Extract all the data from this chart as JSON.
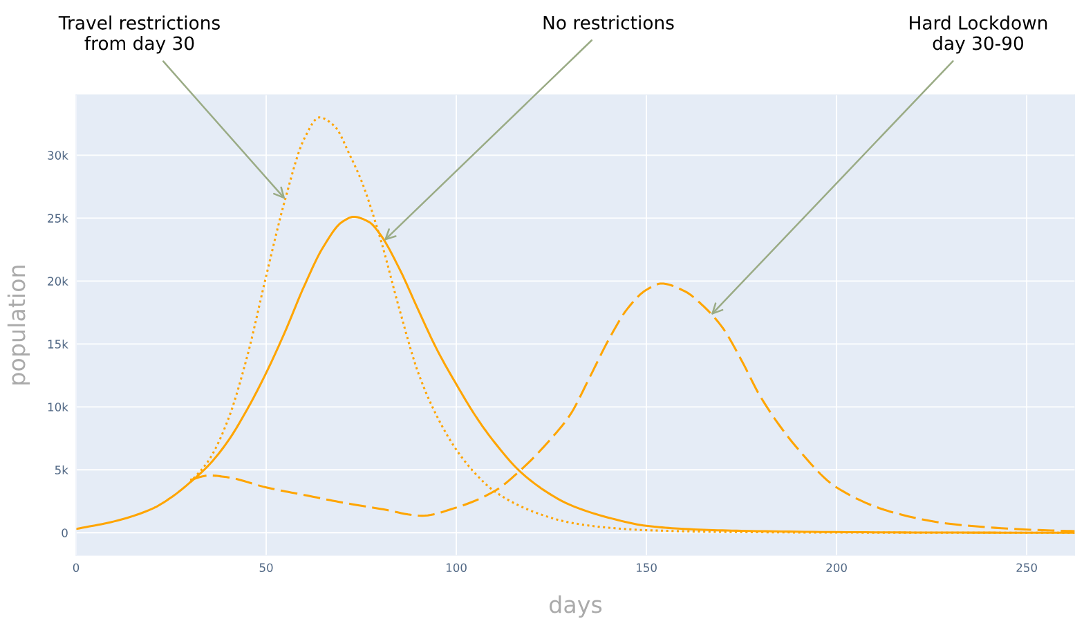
{
  "chart_data": {
    "type": "line",
    "xlabel": "days",
    "ylabel": "population",
    "xlim": [
      0,
      262.7
    ],
    "xticks": [
      0,
      50,
      100,
      150,
      200,
      250
    ],
    "ylim": [
      -1800,
      34800
    ],
    "yticks": [
      0,
      {
        "value": 5000,
        "label": "5k"
      },
      {
        "value": 10000,
        "label": "10k"
      },
      {
        "value": 15000,
        "label": "15k"
      },
      {
        "value": 20000,
        "label": "20k"
      },
      {
        "value": 25000,
        "label": "25k"
      },
      {
        "value": 30000,
        "label": "30k"
      }
    ],
    "grid": true,
    "series": [
      {
        "color": "#ffa500",
        "line_style": "solid",
        "x": [
          0,
          10,
          20,
          25,
          30,
          35,
          40,
          45,
          50,
          55,
          60,
          65,
          70,
          73,
          77,
          80,
          85,
          90,
          95,
          100,
          105,
          110,
          117,
          125,
          130,
          140,
          150,
          160,
          175,
          200,
          230,
          262.7
        ],
        "values": [
          300,
          900,
          1900,
          2800,
          4000,
          5400,
          7300,
          9800,
          12700,
          16000,
          19600,
          22700,
          24700,
          25100,
          24700,
          23700,
          21000,
          17700,
          14500,
          11800,
          9300,
          7200,
          4800,
          3000,
          2200,
          1200,
          550,
          300,
          150,
          50,
          10,
          0
        ]
      },
      {
        "color": "#ffa500",
        "line_style": "dotted",
        "x": [
          30,
          35,
          40,
          45,
          50,
          55,
          60,
          64,
          68,
          72,
          75,
          80,
          85,
          90,
          95,
          100,
          105,
          110,
          120,
          130,
          140,
          150,
          175,
          200,
          262.7
        ],
        "values": [
          4000,
          5800,
          9000,
          14000,
          20400,
          26500,
          31300,
          33000,
          32300,
          30000,
          28000,
          23400,
          17800,
          12700,
          9200,
          6600,
          4700,
          3300,
          1700,
          800,
          400,
          200,
          50,
          10,
          0
        ]
      },
      {
        "color": "#ffa500",
        "line_style": "dashed",
        "x": [
          30,
          35,
          40,
          50,
          60,
          70,
          80,
          91,
          100,
          110,
          117,
          125,
          130,
          135,
          140,
          145,
          150,
          154,
          160,
          165,
          170,
          175,
          180,
          190,
          200,
          215,
          230,
          250,
          262.7
        ],
        "values": [
          4200,
          4550,
          4400,
          3600,
          3000,
          2400,
          1900,
          1350,
          2000,
          3300,
          5000,
          7500,
          9400,
          12300,
          15300,
          17800,
          19300,
          19800,
          19200,
          18000,
          16300,
          13700,
          10800,
          6600,
          3600,
          1600,
          700,
          250,
          120
        ]
      }
    ],
    "annotations": [
      {
        "text": "Travel restrictions\nfrom day 30",
        "x": 55,
        "y": 26500
      },
      {
        "text": "No restrictions",
        "x": 81,
        "y": 23200
      },
      {
        "text": "Hard Lockdown\nday 30-90",
        "x": 167,
        "y": 17300
      }
    ]
  }
}
